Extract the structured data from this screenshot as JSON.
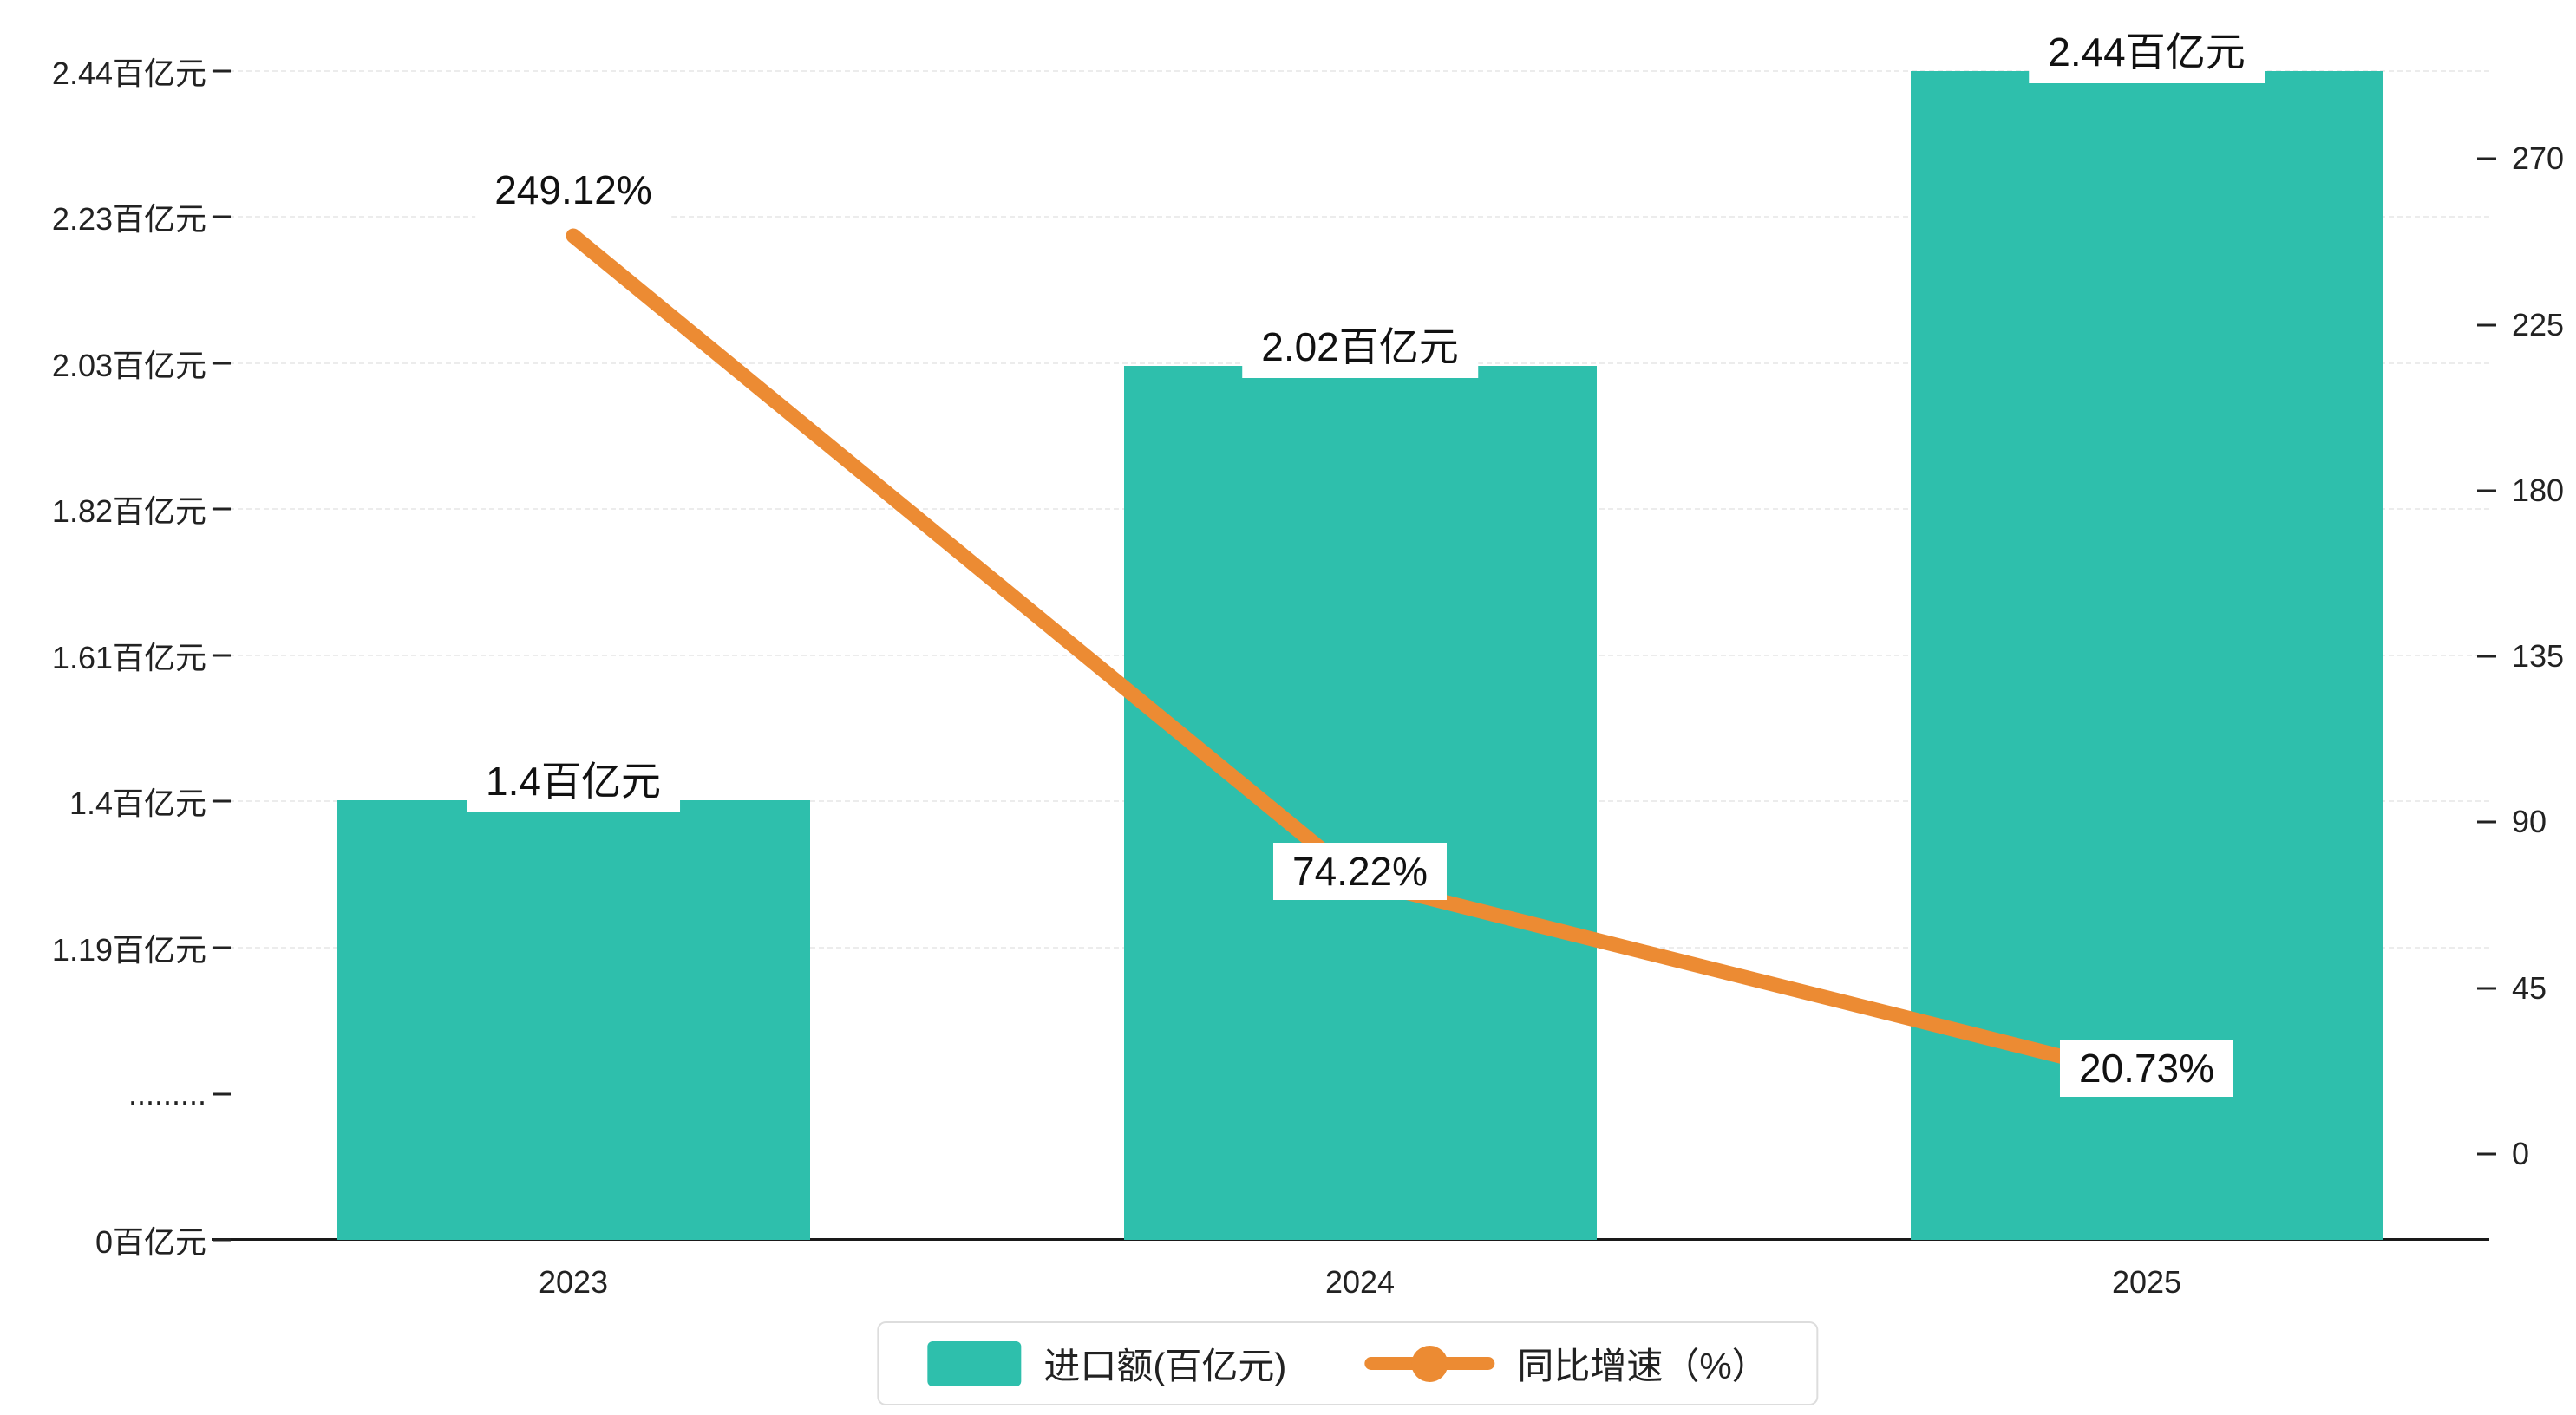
{
  "chart_data": {
    "type": "bar",
    "subtype": "bar-with-line-overlay",
    "categories": [
      "2023",
      "2024",
      "2025"
    ],
    "series": [
      {
        "name": "进口额(百亿元)",
        "type": "bar",
        "values": [
          1.4,
          2.02,
          2.44
        ],
        "labels": [
          "1.4百亿元",
          "2.02百亿元",
          "2.44百亿元"
        ],
        "color": "#2ebfac"
      },
      {
        "name": "同比增速（%）",
        "type": "line",
        "values": [
          249.12,
          74.22,
          20.73
        ],
        "labels": [
          "249.12%",
          "74.22%",
          "20.73%"
        ],
        "color": "#ec8b33"
      }
    ],
    "left_axis": {
      "ticks": [
        "2.44百亿元",
        "2.23百亿元",
        "2.03百亿元",
        "1.82百亿元",
        "1.61百亿元",
        "1.4百亿元",
        "1.19百亿元",
        ".........",
        "0百亿元"
      ],
      "axis_break": true
    },
    "right_axis": {
      "ticks": [
        270,
        225,
        180,
        135,
        90,
        45,
        0
      ],
      "min": 0,
      "max": 270
    },
    "grid": true,
    "legend_position": "bottom",
    "legend": [
      {
        "label": "进口额(百亿元)",
        "swatch": "bar",
        "color": "#2ebfac"
      },
      {
        "label": "同比增速（%）",
        "swatch": "line",
        "color": "#ec8b33"
      }
    ]
  }
}
